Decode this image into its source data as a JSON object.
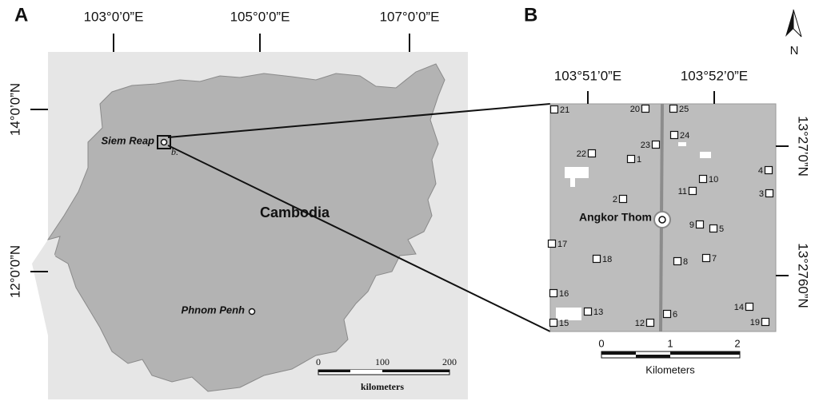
{
  "panel_a": {
    "label": "A",
    "lon_labels": [
      "103°0’0”E",
      "105°0’0”E",
      "107°0’0”E"
    ],
    "lat_labels": [
      "14°0’0”N",
      "12°0’0”N"
    ],
    "places": {
      "siem_reap": "Siem Reap",
      "inset": "b.",
      "country": "Cambodia",
      "capital": "Phnom Penh"
    },
    "scale": {
      "ticks": [
        "0",
        "100",
        "200"
      ],
      "unit": "kilometers"
    }
  },
  "panel_b": {
    "label": "B",
    "lon_labels": [
      "103°51’0”E",
      "103°52’0”E"
    ],
    "lat_labels": [
      "13°27’0”N",
      "13°2760”N"
    ],
    "site_center": "Angkor Thom",
    "sites": [
      "1",
      "2",
      "3",
      "4",
      "5",
      "6",
      "7",
      "8",
      "9",
      "10",
      "11",
      "12",
      "13",
      "14",
      "15",
      "16",
      "17",
      "18",
      "19",
      "20",
      "21",
      "22",
      "23",
      "24",
      "25"
    ],
    "scale": {
      "ticks": [
        "0",
        "1",
        "2"
      ],
      "unit": "Kilometers"
    },
    "north": "N"
  }
}
